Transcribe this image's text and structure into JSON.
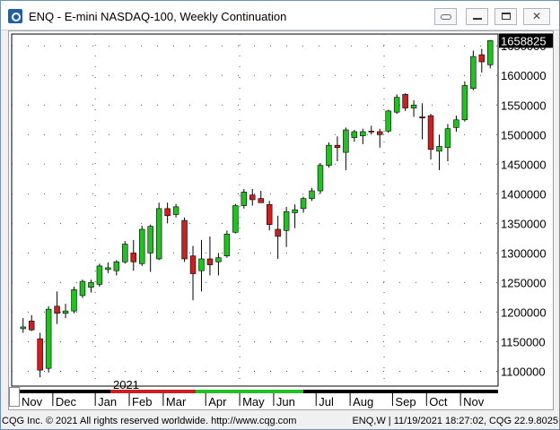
{
  "window": {
    "title": "ENQ - E-mini NASDAQ-100, Weekly Continuation",
    "buttons": {
      "link": "link-icon",
      "minimize": "minimize-icon",
      "maximize": "maximize-icon",
      "close": "close-icon"
    }
  },
  "footer": {
    "left": "CQG Inc. © 2021 All rights reserved worldwide. http://www.cqg.com",
    "right": "ENQ,W | 11/19/2021 18:27:02, CQG 22.9.8025"
  },
  "chart_data": {
    "type": "candlestick",
    "year_label": "2021",
    "last_price_label": "1658825",
    "yaxis_labels": [
      "1650000",
      "1600000",
      "1550000",
      "1500000",
      "1450000",
      "1400000",
      "1350000",
      "1300000",
      "1250000",
      "1200000",
      "1150000",
      "1100000"
    ],
    "xaxis_labels": [
      "Nov",
      "Dec",
      "Jan",
      "Feb",
      "Mar",
      "Apr",
      "May",
      "Jun",
      "Jul",
      "Aug",
      "Sep",
      "Oct",
      "Nov"
    ],
    "ylim": [
      1075000,
      1670000
    ],
    "grid": true,
    "colors": {
      "up": "#22c022",
      "down": "#cc2020",
      "wick": "#000000",
      "grid": "#555555",
      "price_label_bg": "#000000",
      "price_label_text": "#ffffff"
    },
    "candles": [
      {
        "o": 1172000,
        "h": 1190000,
        "l": 1165000,
        "c": 1175000
      },
      {
        "o": 1185000,
        "h": 1195000,
        "l": 1168000,
        "c": 1170000
      },
      {
        "o": 1155000,
        "h": 1165000,
        "l": 1090000,
        "c": 1102000
      },
      {
        "o": 1105000,
        "h": 1210000,
        "l": 1098000,
        "c": 1205000
      },
      {
        "o": 1210000,
        "h": 1235000,
        "l": 1180000,
        "c": 1198000
      },
      {
        "o": 1198000,
        "h": 1214000,
        "l": 1190000,
        "c": 1202000
      },
      {
        "o": 1202000,
        "h": 1243000,
        "l": 1198000,
        "c": 1238000
      },
      {
        "o": 1228000,
        "h": 1255000,
        "l": 1224000,
        "c": 1252000
      },
      {
        "o": 1242000,
        "h": 1255000,
        "l": 1233000,
        "c": 1250000
      },
      {
        "o": 1247000,
        "h": 1282000,
        "l": 1243000,
        "c": 1278000
      },
      {
        "o": 1272000,
        "h": 1284000,
        "l": 1266000,
        "c": 1275000
      },
      {
        "o": 1270000,
        "h": 1288000,
        "l": 1262000,
        "c": 1285000
      },
      {
        "o": 1285000,
        "h": 1320000,
        "l": 1282000,
        "c": 1315000
      },
      {
        "o": 1300000,
        "h": 1322000,
        "l": 1270000,
        "c": 1285000
      },
      {
        "o": 1282000,
        "h": 1346000,
        "l": 1278000,
        "c": 1340000
      },
      {
        "o": 1300000,
        "h": 1348000,
        "l": 1268000,
        "c": 1345000
      },
      {
        "o": 1290000,
        "h": 1385000,
        "l": 1288000,
        "c": 1375000
      },
      {
        "o": 1375000,
        "h": 1385000,
        "l": 1350000,
        "c": 1363000
      },
      {
        "o": 1365000,
        "h": 1383000,
        "l": 1360000,
        "c": 1378000
      },
      {
        "o": 1355000,
        "h": 1360000,
        "l": 1285000,
        "c": 1290000
      },
      {
        "o": 1295000,
        "h": 1312000,
        "l": 1220000,
        "c": 1265000
      },
      {
        "o": 1270000,
        "h": 1322000,
        "l": 1235000,
        "c": 1290000
      },
      {
        "o": 1290000,
        "h": 1328000,
        "l": 1262000,
        "c": 1280000
      },
      {
        "o": 1285000,
        "h": 1300000,
        "l": 1262000,
        "c": 1292000
      },
      {
        "o": 1295000,
        "h": 1338000,
        "l": 1292000,
        "c": 1332000
      },
      {
        "o": 1335000,
        "h": 1383000,
        "l": 1333000,
        "c": 1380000
      },
      {
        "o": 1380000,
        "h": 1408000,
        "l": 1375000,
        "c": 1403000
      },
      {
        "o": 1398000,
        "h": 1408000,
        "l": 1380000,
        "c": 1390000
      },
      {
        "o": 1392000,
        "h": 1405000,
        "l": 1385000,
        "c": 1385000
      },
      {
        "o": 1382000,
        "h": 1388000,
        "l": 1338000,
        "c": 1348000
      },
      {
        "o": 1340000,
        "h": 1363000,
        "l": 1290000,
        "c": 1328000
      },
      {
        "o": 1338000,
        "h": 1378000,
        "l": 1310000,
        "c": 1370000
      },
      {
        "o": 1368000,
        "h": 1382000,
        "l": 1342000,
        "c": 1373000
      },
      {
        "o": 1375000,
        "h": 1395000,
        "l": 1368000,
        "c": 1392000
      },
      {
        "o": 1392000,
        "h": 1410000,
        "l": 1388000,
        "c": 1405000
      },
      {
        "o": 1405000,
        "h": 1452000,
        "l": 1400000,
        "c": 1448000
      },
      {
        "o": 1448000,
        "h": 1487000,
        "l": 1444000,
        "c": 1482000
      },
      {
        "o": 1482000,
        "h": 1497000,
        "l": 1455000,
        "c": 1478000
      },
      {
        "o": 1470000,
        "h": 1512000,
        "l": 1440000,
        "c": 1508000
      },
      {
        "o": 1495000,
        "h": 1508000,
        "l": 1488000,
        "c": 1505000
      },
      {
        "o": 1498000,
        "h": 1510000,
        "l": 1484000,
        "c": 1505000
      },
      {
        "o": 1506000,
        "h": 1515000,
        "l": 1500000,
        "c": 1505000
      },
      {
        "o": 1505000,
        "h": 1510000,
        "l": 1478000,
        "c": 1500000
      },
      {
        "o": 1506000,
        "h": 1542000,
        "l": 1503000,
        "c": 1540000
      },
      {
        "o": 1538000,
        "h": 1568000,
        "l": 1535000,
        "c": 1563000
      },
      {
        "o": 1568000,
        "h": 1570000,
        "l": 1540000,
        "c": 1545000
      },
      {
        "o": 1545000,
        "h": 1558000,
        "l": 1530000,
        "c": 1550000
      },
      {
        "o": 1530000,
        "h": 1553000,
        "l": 1492000,
        "c": 1528000
      },
      {
        "o": 1532000,
        "h": 1535000,
        "l": 1458000,
        "c": 1475000
      },
      {
        "o": 1472000,
        "h": 1500000,
        "l": 1440000,
        "c": 1480000
      },
      {
        "o": 1478000,
        "h": 1518000,
        "l": 1455000,
        "c": 1510000
      },
      {
        "o": 1512000,
        "h": 1532000,
        "l": 1505000,
        "c": 1525000
      },
      {
        "o": 1525000,
        "h": 1590000,
        "l": 1522000,
        "c": 1583000
      },
      {
        "o": 1578000,
        "h": 1642000,
        "l": 1575000,
        "c": 1632000
      },
      {
        "o": 1635000,
        "h": 1645000,
        "l": 1605000,
        "c": 1623000
      },
      {
        "o": 1618000,
        "h": 1660000,
        "l": 1612000,
        "c": 1658825
      }
    ]
  }
}
